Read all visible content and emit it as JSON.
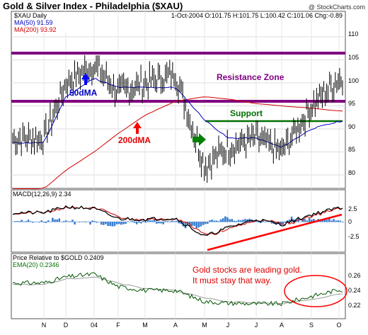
{
  "header": {
    "title": "Gold & Silver Index - Philadelphia ($XAU)",
    "watermark": "@ StockCharts.com"
  },
  "price_panel": {
    "symbol_label": "$XAU Daily",
    "ohlc_line": "1-Oct-2004  O:101.75  H:101.75  L:100.42  C:101.06  Chg:-0.89",
    "ma50_label": "MA(50) 91.59",
    "ma200_label": "MA(200) 93.92",
    "y_ticks": [
      "110",
      "105",
      "100",
      "95",
      "90",
      "85",
      "80"
    ],
    "annotations": {
      "resistance": "Resistance Zone",
      "support": "Support",
      "dma50": "50dMA",
      "dma200": "200dMA"
    }
  },
  "macd_panel": {
    "label": "MACD(12,26,9) 2.34",
    "y_ticks": [
      "2.5",
      "0",
      "-2.5"
    ]
  },
  "ratio_panel": {
    "label": "Price Relative to $GOLD  0.2409",
    "ema_label": "EMA(20) 0.2346",
    "y_ticks": [
      "0.26",
      "0.24",
      "0.22"
    ],
    "callout_line1": "Gold stocks are leading gold.",
    "callout_line2": "It must stay that way."
  },
  "x_axis": {
    "labels": [
      "N",
      "D",
      "04",
      "F",
      "M",
      "A",
      "M",
      "J",
      "J",
      "A",
      "S",
      "O"
    ]
  },
  "colors": {
    "annotation_purple": "#800080",
    "annotation_red": "#e00000",
    "annotation_green": "#007000",
    "ma50_blue": "#0000c0",
    "ma200_red": "#d00000",
    "arrow_blue": "#0000ff",
    "arrow_red": "#ff0000",
    "macd_hist": "#3a7fd0",
    "ratio_green": "#005500",
    "ema_gray": "#999999"
  },
  "chart_data": [
    {
      "type": "line",
      "title": "Gold & Silver Index - Philadelphia ($XAU)",
      "x": [
        "N",
        "D",
        "04",
        "F",
        "M",
        "A",
        "M",
        "J",
        "J",
        "A",
        "S",
        "O"
      ],
      "ylim": [
        75,
        113
      ],
      "y_ticks": [
        80,
        85,
        90,
        95,
        100,
        105,
        110
      ],
      "series": [
        {
          "name": "$XAU Daily",
          "values": [
            88,
            100,
            104,
            98,
            100,
            102,
            82,
            86,
            88,
            85,
            95,
            101
          ]
        },
        {
          "name": "MA(50) 91.59",
          "values": [
            87,
            97,
            101,
            99,
            99,
            99,
            92,
            88,
            88,
            86,
            90,
            91.6
          ]
        },
        {
          "name": "MA(200) 93.92",
          "values": [
            77,
            81,
            85,
            89,
            93,
            96,
            97,
            96.5,
            95.5,
            95,
            94.5,
            93.9
          ]
        }
      ],
      "horizontal_lines": [
        {
          "label": "Resistance Zone",
          "value": 105.7
        },
        {
          "label": "Resistance Zone",
          "value": 95.5
        },
        {
          "label": "Support",
          "value": 91
        }
      ]
    },
    {
      "type": "line",
      "title": "MACD(12,26,9) 2.34",
      "ylim": [
        -4,
        3
      ],
      "y_ticks": [
        -2.5,
        0,
        2.5
      ],
      "series": [
        {
          "name": "MACD(12,26,9)",
          "values": [
            1.5,
            2.5,
            2.2,
            0.5,
            0.4,
            0.6,
            -2.5,
            -1.0,
            0.4,
            -0.5,
            1.2,
            2.34
          ]
        }
      ]
    },
    {
      "type": "line",
      "title": "Price Relative to $GOLD 0.2409",
      "ylim": [
        0.21,
        0.27
      ],
      "y_ticks": [
        0.22,
        0.24,
        0.26
      ],
      "series": [
        {
          "name": "Price Relative to $GOLD",
          "values": [
            0.25,
            0.258,
            0.262,
            0.245,
            0.24,
            0.24,
            0.225,
            0.223,
            0.222,
            0.222,
            0.232,
            0.2409
          ]
        },
        {
          "name": "EMA(20)",
          "values": [
            0.248,
            0.255,
            0.258,
            0.25,
            0.242,
            0.24,
            0.23,
            0.225,
            0.223,
            0.222,
            0.228,
            0.2346
          ]
        }
      ]
    }
  ]
}
